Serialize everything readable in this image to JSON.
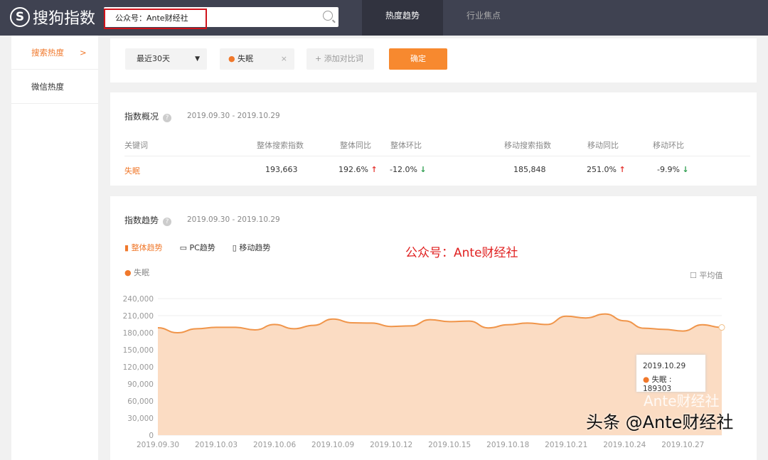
{
  "header": {
    "logo_text": "搜狗指数",
    "search_value": "公众号：Ante财经社",
    "nav": [
      "热度趋势",
      "行业焦点"
    ]
  },
  "sidebar": {
    "items": [
      {
        "label": "搜索热度",
        "arrow": ">"
      },
      {
        "label": "微信热度"
      }
    ]
  },
  "filters": {
    "period": "最近30天",
    "keyword": "失眠",
    "add_compare": "添加对比词",
    "confirm": "确定"
  },
  "overview": {
    "title": "指数概况",
    "range": "2019.09.30 - 2019.10.29",
    "headers": [
      "关键词",
      "整体搜索指数",
      "整体同比",
      "整体环比",
      "移动搜索指数",
      "移动同比",
      "移动环比"
    ],
    "row": {
      "keyword": "失眠",
      "total": "193,663",
      "yoy": "192.6%",
      "mom": "-12.0%",
      "mobile": "185,848",
      "m_yoy": "251.0%",
      "m_mom": "-9.9%"
    }
  },
  "trend": {
    "title": "指数趋势",
    "range": "2019.09.30 - 2019.10.29",
    "tabs": [
      "整体趋势",
      "PC趋势",
      "移动趋势"
    ],
    "overlay_text": "公众号：Ante财经社",
    "avg_label": "平均值",
    "tooltip_date": "2019.10.29",
    "tooltip_text": "失眠 : 189303"
  },
  "watermark": {
    "text1": "Ante财经社",
    "text2": "头条 @Ante财经社"
  },
  "chart_data": {
    "type": "area",
    "series": [
      {
        "name": "失眠",
        "color": "#f0954a",
        "values": [
          188700,
          180000,
          187000,
          189500,
          189500,
          185000,
          194500,
          187000,
          193000,
          204000,
          197500,
          197000,
          191000,
          192000,
          203000,
          199500,
          200500,
          188500,
          194000,
          197000,
          194500,
          209000,
          206000,
          213000,
          201000,
          188000,
          186000,
          183000,
          194000,
          189303
        ]
      }
    ],
    "x_start": "2019.09.30",
    "x_end": "2019.10.29",
    "xticks": [
      "2019.09.30",
      "2019.10.03",
      "2019.10.06",
      "2019.10.09",
      "2019.10.12",
      "2019.10.15",
      "2019.10.18",
      "2019.10.21",
      "2019.10.24",
      "2019.10.27"
    ],
    "yticks": [
      "0",
      "30,000",
      "60,000",
      "90,000",
      "120,000",
      "150,000",
      "180,000",
      "210,000",
      "240,000"
    ],
    "ylim": [
      0,
      240000
    ],
    "grid": true,
    "legend": "top-left"
  }
}
